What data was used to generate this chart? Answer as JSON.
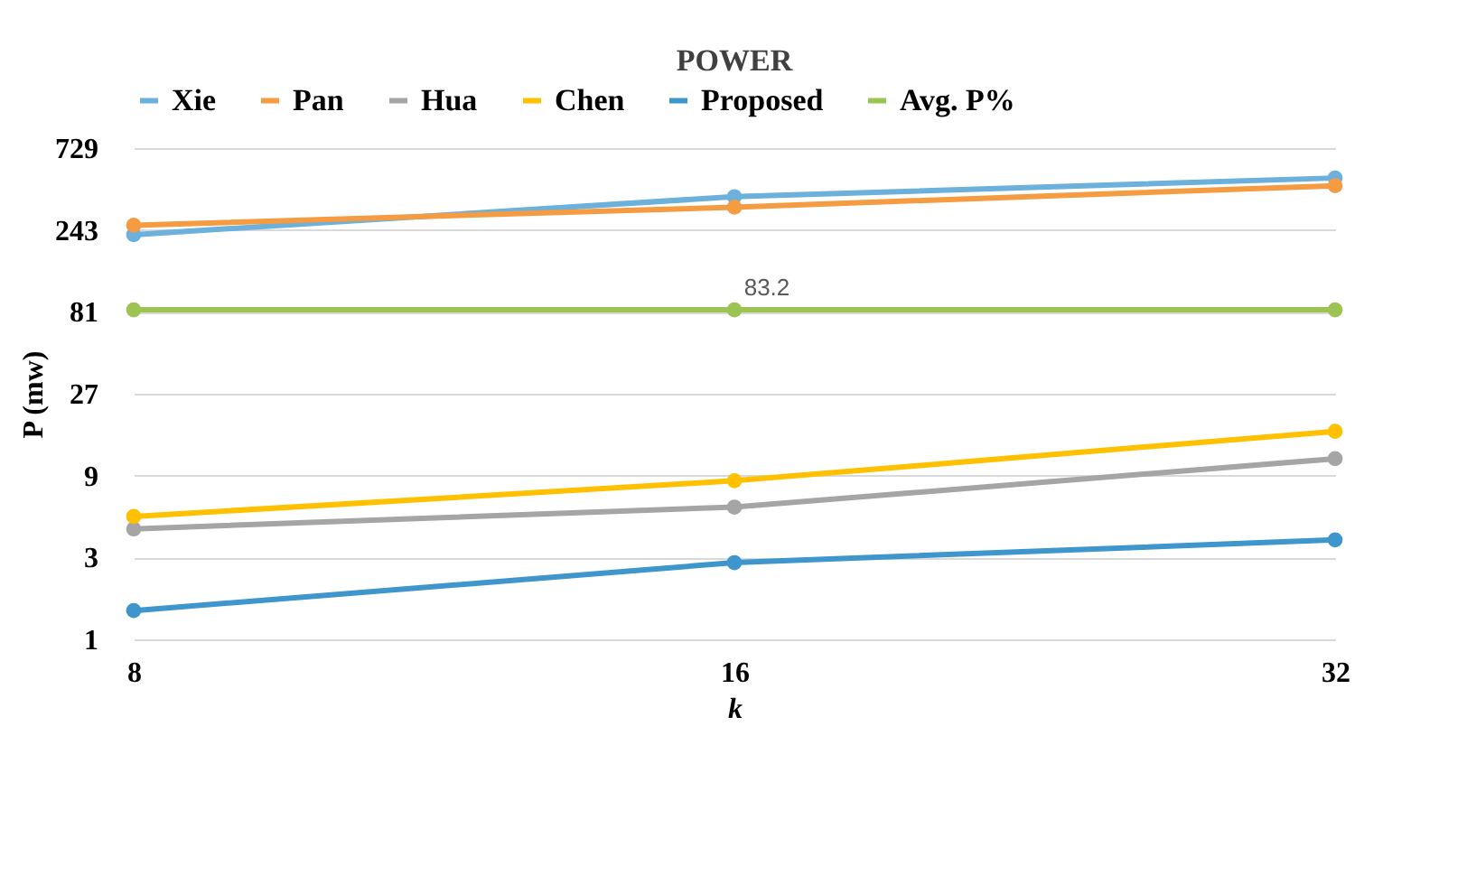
{
  "chart_data": {
    "type": "line",
    "title": "POWER",
    "xlabel": "k",
    "ylabel": "P (mw)",
    "categories": [
      "8",
      "16",
      "32"
    ],
    "series": [
      {
        "name": "Xie",
        "color": "#6cb0dc",
        "values": [
          228,
          380,
          488
        ]
      },
      {
        "name": "Pan",
        "color": "#f59b42",
        "values": [
          259,
          330,
          440
        ]
      },
      {
        "name": "Hua",
        "color": "#a5a5a5",
        "values": [
          4.4,
          5.9,
          11.3
        ]
      },
      {
        "name": "Chen",
        "color": "#ffc000",
        "values": [
          5.2,
          8.4,
          16.3
        ]
      },
      {
        "name": "Proposed",
        "color": "#3f96cd",
        "values": [
          1.47,
          2.8,
          3.8
        ]
      },
      {
        "name": "Avg. P%",
        "color": "#9bc453",
        "values": [
          83.2,
          83.2,
          83.2
        ],
        "value_labels": [
          null,
          "83.2",
          null
        ]
      }
    ],
    "log": "y",
    "ylim": [
      1,
      729
    ],
    "yticks": [
      1,
      3,
      9,
      27,
      81,
      243,
      729
    ],
    "grid": "y",
    "legend": "top",
    "marker": "circle",
    "line_style": "solid"
  }
}
